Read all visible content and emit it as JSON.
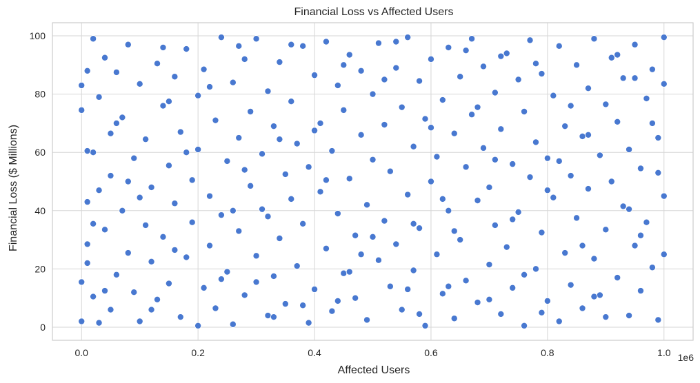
{
  "chart_data": {
    "type": "scatter",
    "title": "Financial Loss vs Affected Users",
    "xlabel": "Affected Users",
    "ylabel": "Financial Loss ($ Millions)",
    "x_offset_label": "1e6",
    "xlim": [
      -0.05,
      1.05
    ],
    "ylim": [
      -4.5,
      104.5
    ],
    "xticks": [
      0.0,
      0.2,
      0.4,
      0.6,
      0.8,
      1.0
    ],
    "xtick_labels": [
      "0.0",
      "0.2",
      "0.4",
      "0.6",
      "0.8",
      "1.0"
    ],
    "yticks": [
      0,
      20,
      40,
      60,
      80,
      100
    ],
    "ytick_labels": [
      "0",
      "20",
      "40",
      "60",
      "80",
      "100"
    ],
    "grid": true,
    "marker_color": "#4878d0",
    "series": [
      {
        "points": [
          [
            0.0,
            2.0
          ],
          [
            0.0,
            15.5
          ],
          [
            0.0,
            74.5
          ],
          [
            0.0,
            83.0
          ],
          [
            0.01,
            88.0
          ],
          [
            0.01,
            43.0
          ],
          [
            0.01,
            28.5
          ],
          [
            0.01,
            22.0
          ],
          [
            0.02,
            99.0
          ],
          [
            0.02,
            60.0
          ],
          [
            0.02,
            10.5
          ],
          [
            0.03,
            47.0
          ],
          [
            0.03,
            1.5
          ],
          [
            0.03,
            79.0
          ],
          [
            0.04,
            33.5
          ],
          [
            0.04,
            92.5
          ],
          [
            0.05,
            66.5
          ],
          [
            0.05,
            52.0
          ],
          [
            0.05,
            6.0
          ],
          [
            0.06,
            87.5
          ],
          [
            0.06,
            18.0
          ],
          [
            0.07,
            40.0
          ],
          [
            0.07,
            72.0
          ],
          [
            0.08,
            25.5
          ],
          [
            0.08,
            97.0
          ],
          [
            0.09,
            12.0
          ],
          [
            0.09,
            58.0
          ],
          [
            0.1,
            2.0
          ],
          [
            0.1,
            83.5
          ],
          [
            0.11,
            35.0
          ],
          [
            0.11,
            64.5
          ],
          [
            0.12,
            22.5
          ],
          [
            0.12,
            48.0
          ],
          [
            0.13,
            90.5
          ],
          [
            0.13,
            9.5
          ],
          [
            0.14,
            76.0
          ],
          [
            0.14,
            31.0
          ],
          [
            0.15,
            55.5
          ],
          [
            0.15,
            15.0
          ],
          [
            0.16,
            86.0
          ],
          [
            0.16,
            42.5
          ],
          [
            0.17,
            67.0
          ],
          [
            0.17,
            3.5
          ],
          [
            0.18,
            24.0
          ],
          [
            0.18,
            95.5
          ],
          [
            0.19,
            50.5
          ],
          [
            0.19,
            36.0
          ],
          [
            0.2,
            0.5
          ],
          [
            0.2,
            79.5
          ],
          [
            0.2,
            61.0
          ],
          [
            0.21,
            13.5
          ],
          [
            0.21,
            88.5
          ],
          [
            0.22,
            28.0
          ],
          [
            0.22,
            45.0
          ],
          [
            0.23,
            71.0
          ],
          [
            0.23,
            6.5
          ],
          [
            0.24,
            99.5
          ],
          [
            0.24,
            38.5
          ],
          [
            0.25,
            57.0
          ],
          [
            0.25,
            19.0
          ],
          [
            0.26,
            84.0
          ],
          [
            0.26,
            1.0
          ],
          [
            0.27,
            65.0
          ],
          [
            0.27,
            33.0
          ],
          [
            0.28,
            92.0
          ],
          [
            0.28,
            11.0
          ],
          [
            0.29,
            48.5
          ],
          [
            0.29,
            74.0
          ],
          [
            0.3,
            24.5
          ],
          [
            0.3,
            99.0
          ],
          [
            0.31,
            40.5
          ],
          [
            0.31,
            59.5
          ],
          [
            0.32,
            4.0
          ],
          [
            0.32,
            81.0
          ],
          [
            0.33,
            17.5
          ],
          [
            0.33,
            69.0
          ],
          [
            0.34,
            30.5
          ],
          [
            0.34,
            91.0
          ],
          [
            0.35,
            52.5
          ],
          [
            0.35,
            8.0
          ],
          [
            0.36,
            77.5
          ],
          [
            0.36,
            44.0
          ],
          [
            0.37,
            63.0
          ],
          [
            0.37,
            21.0
          ],
          [
            0.38,
            96.5
          ],
          [
            0.38,
            35.5
          ],
          [
            0.39,
            55.0
          ],
          [
            0.39,
            1.5
          ],
          [
            0.4,
            86.5
          ],
          [
            0.4,
            13.0
          ],
          [
            0.41,
            70.0
          ],
          [
            0.41,
            46.5
          ],
          [
            0.42,
            27.0
          ],
          [
            0.42,
            98.0
          ],
          [
            0.43,
            60.5
          ],
          [
            0.43,
            5.5
          ],
          [
            0.44,
            83.0
          ],
          [
            0.44,
            39.0
          ],
          [
            0.45,
            18.5
          ],
          [
            0.45,
            74.5
          ],
          [
            0.46,
            51.0
          ],
          [
            0.46,
            93.5
          ],
          [
            0.47,
            31.5
          ],
          [
            0.47,
            10.0
          ],
          [
            0.48,
            66.0
          ],
          [
            0.48,
            88.0
          ],
          [
            0.49,
            42.0
          ],
          [
            0.49,
            2.5
          ],
          [
            0.5,
            57.5
          ],
          [
            0.5,
            80.0
          ],
          [
            0.51,
            23.0
          ],
          [
            0.51,
            97.5
          ],
          [
            0.52,
            36.5
          ],
          [
            0.52,
            69.5
          ],
          [
            0.53,
            14.0
          ],
          [
            0.53,
            53.5
          ],
          [
            0.54,
            89.0
          ],
          [
            0.54,
            28.5
          ],
          [
            0.55,
            6.0
          ],
          [
            0.55,
            75.5
          ],
          [
            0.56,
            45.5
          ],
          [
            0.56,
            99.5
          ],
          [
            0.57,
            62.0
          ],
          [
            0.57,
            19.5
          ],
          [
            0.58,
            84.5
          ],
          [
            0.58,
            34.0
          ],
          [
            0.59,
            0.5
          ],
          [
            0.59,
            71.5
          ],
          [
            0.6,
            50.0
          ],
          [
            0.6,
            92.0
          ],
          [
            0.61,
            25.0
          ],
          [
            0.61,
            58.5
          ],
          [
            0.62,
            11.5
          ],
          [
            0.62,
            78.0
          ],
          [
            0.63,
            40.0
          ],
          [
            0.63,
            96.0
          ],
          [
            0.64,
            66.5
          ],
          [
            0.64,
            3.0
          ],
          [
            0.65,
            30.0
          ],
          [
            0.65,
            86.0
          ],
          [
            0.66,
            55.0
          ],
          [
            0.66,
            16.0
          ],
          [
            0.67,
            73.0
          ],
          [
            0.67,
            99.0
          ],
          [
            0.68,
            43.5
          ],
          [
            0.68,
            8.5
          ],
          [
            0.69,
            61.5
          ],
          [
            0.69,
            89.5
          ],
          [
            0.7,
            21.5
          ],
          [
            0.7,
            48.0
          ],
          [
            0.71,
            80.5
          ],
          [
            0.71,
            35.0
          ],
          [
            0.72,
            4.5
          ],
          [
            0.72,
            68.0
          ],
          [
            0.73,
            94.0
          ],
          [
            0.73,
            27.5
          ],
          [
            0.74,
            56.0
          ],
          [
            0.74,
            13.5
          ],
          [
            0.75,
            85.0
          ],
          [
            0.75,
            39.5
          ],
          [
            0.76,
            0.5
          ],
          [
            0.76,
            74.0
          ],
          [
            0.77,
            98.5
          ],
          [
            0.77,
            51.5
          ],
          [
            0.78,
            20.0
          ],
          [
            0.78,
            63.5
          ],
          [
            0.79,
            87.0
          ],
          [
            0.79,
            32.5
          ],
          [
            0.8,
            9.0
          ],
          [
            0.8,
            58.0
          ],
          [
            0.81,
            79.5
          ],
          [
            0.81,
            44.5
          ],
          [
            0.82,
            2.0
          ],
          [
            0.82,
            96.5
          ],
          [
            0.83,
            69.0
          ],
          [
            0.83,
            25.5
          ],
          [
            0.84,
            52.0
          ],
          [
            0.84,
            14.5
          ],
          [
            0.85,
            90.0
          ],
          [
            0.85,
            37.5
          ],
          [
            0.86,
            65.5
          ],
          [
            0.86,
            6.5
          ],
          [
            0.87,
            82.0
          ],
          [
            0.87,
            47.5
          ],
          [
            0.88,
            23.5
          ],
          [
            0.88,
            99.0
          ],
          [
            0.89,
            59.0
          ],
          [
            0.89,
            11.0
          ],
          [
            0.9,
            76.5
          ],
          [
            0.9,
            33.5
          ],
          [
            0.91,
            92.5
          ],
          [
            0.91,
            50.0
          ],
          [
            0.92,
            17.0
          ],
          [
            0.92,
            70.5
          ],
          [
            0.93,
            41.5
          ],
          [
            0.93,
            85.5
          ],
          [
            0.94,
            4.0
          ],
          [
            0.94,
            61.0
          ],
          [
            0.95,
            28.0
          ],
          [
            0.95,
            97.0
          ],
          [
            0.96,
            54.5
          ],
          [
            0.96,
            12.5
          ],
          [
            0.97,
            78.5
          ],
          [
            0.97,
            36.0
          ],
          [
            0.98,
            88.5
          ],
          [
            0.98,
            20.5
          ],
          [
            0.99,
            65.0
          ],
          [
            0.99,
            2.5
          ],
          [
            1.0,
            45.0
          ],
          [
            1.0,
            83.5
          ],
          [
            1.0,
            25.0
          ],
          [
            1.0,
            99.5
          ],
          [
            0.02,
            35.5
          ],
          [
            0.06,
            70.0
          ],
          [
            0.1,
            44.5
          ],
          [
            0.14,
            96.0
          ],
          [
            0.18,
            60.0
          ],
          [
            0.22,
            82.5
          ],
          [
            0.26,
            40.0
          ],
          [
            0.3,
            15.5
          ],
          [
            0.34,
            64.5
          ],
          [
            0.38,
            7.5
          ],
          [
            0.42,
            50.5
          ],
          [
            0.46,
            19.0
          ],
          [
            0.5,
            31.0
          ],
          [
            0.54,
            98.0
          ],
          [
            0.58,
            4.5
          ],
          [
            0.62,
            44.0
          ],
          [
            0.66,
            95.0
          ],
          [
            0.7,
            9.5
          ],
          [
            0.74,
            37.0
          ],
          [
            0.78,
            90.5
          ],
          [
            0.82,
            57.0
          ],
          [
            0.86,
            28.0
          ],
          [
            0.9,
            3.5
          ],
          [
            0.94,
            40.5
          ],
          [
            0.98,
            70.0
          ],
          [
            0.04,
            12.5
          ],
          [
            0.08,
            50.0
          ],
          [
            0.12,
            6.0
          ],
          [
            0.16,
            26.5
          ],
          [
            0.24,
            16.5
          ],
          [
            0.28,
            54.0
          ],
          [
            0.32,
            38.0
          ],
          [
            0.36,
            97.0
          ],
          [
            0.4,
            67.5
          ],
          [
            0.44,
            9.0
          ],
          [
            0.48,
            25.0
          ],
          [
            0.52,
            85.0
          ],
          [
            0.56,
            13.0
          ],
          [
            0.6,
            68.5
          ],
          [
            0.64,
            33.0
          ],
          [
            0.68,
            75.5
          ],
          [
            0.72,
            93.0
          ],
          [
            0.76,
            18.0
          ],
          [
            0.8,
            47.0
          ],
          [
            0.84,
            76.0
          ],
          [
            0.88,
            10.5
          ],
          [
            0.92,
            93.5
          ],
          [
            0.96,
            31.5
          ],
          [
            0.01,
            60.5
          ],
          [
            0.15,
            77.5
          ],
          [
            0.27,
            96.5
          ],
          [
            0.45,
            90.0
          ],
          [
            0.57,
            35.5
          ],
          [
            0.63,
            14.0
          ],
          [
            0.71,
            57.5
          ],
          [
            0.79,
            5.0
          ],
          [
            0.87,
            66.0
          ],
          [
            0.95,
            85.5
          ],
          [
            0.99,
            53.0
          ],
          [
            0.33,
            3.5
          ]
        ]
      }
    ]
  }
}
